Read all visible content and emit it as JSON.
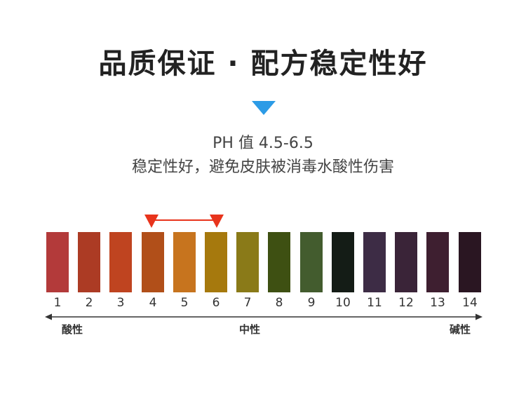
{
  "title": "品质保证 · 配方稳定性好",
  "ph_text": "PH 值 4.5-6.5",
  "description": "稳定性好，避免皮肤被消毒水酸性伤害",
  "scale": {
    "items": [
      {
        "label": "1",
        "color": "#b33a3a"
      },
      {
        "label": "2",
        "color": "#ac3b24"
      },
      {
        "label": "3",
        "color": "#bf4420"
      },
      {
        "label": "4",
        "color": "#b14f19"
      },
      {
        "label": "5",
        "color": "#c7741e"
      },
      {
        "label": "6",
        "color": "#a6790d"
      },
      {
        "label": "7",
        "color": "#8a7a18"
      },
      {
        "label": "8",
        "color": "#3e5012"
      },
      {
        "label": "9",
        "color": "#435c2e"
      },
      {
        "label": "10",
        "color": "#141c16"
      },
      {
        "label": "11",
        "color": "#3d2c45"
      },
      {
        "label": "12",
        "color": "#3a2438"
      },
      {
        "label": "13",
        "color": "#3e1f30"
      },
      {
        "label": "14",
        "color": "#2a1622"
      }
    ],
    "highlight_range": [
      "4",
      "6"
    ],
    "highlight_color": "#e8341c"
  },
  "axis": {
    "left_label": "酸性",
    "center_label": "中性",
    "right_label": "碱性"
  },
  "accent_color": "#2c9be6"
}
